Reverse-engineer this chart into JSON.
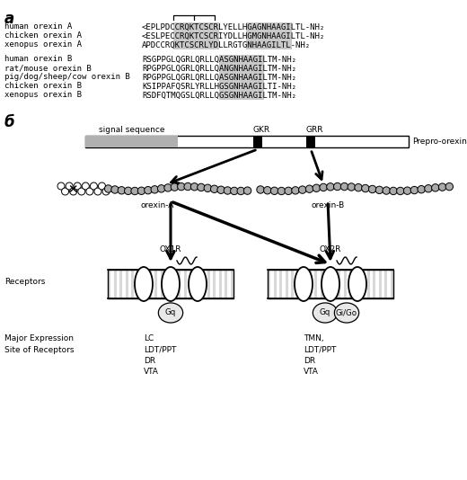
{
  "fig_width": 5.2,
  "fig_height": 5.34,
  "bg_color": "#ffffff",
  "panel_a_label": "a",
  "panel_b_label": "б",
  "orexin_a_sequences": [
    [
      "human orexin A",
      "<EPLPDCCRQKTCSCRLYELLHGAGNHAAGILTL-NH₂"
    ],
    [
      "chicken orexin A",
      "<ESLPECCRQKTCSCRIYDLLHGMGNHAAGILTL-NH₂"
    ],
    [
      "xenopus orexin A",
      "APDCCRQKTCSCRLYDLLRGTGNHAAGILTL-NH₂"
    ]
  ],
  "orexin_b_sequences": [
    [
      "human orexin B",
      "RSGPPGLQGRLQRLLQASGNHAAGILTM-NH₂"
    ],
    [
      "rat/mouse orexin B",
      "RPGPPGLQGRLQRLLQANGNHAAGILTM-NH₂"
    ],
    [
      "pig/dog/sheep/cow orexin B",
      "RPGPPGLQGRLQRLLQASGNHAAGILTM-NH₂"
    ],
    [
      "chicken orexin B",
      "KSIPPAFQSRLYRLLHGSGNHAAGILTI-NH₂"
    ],
    [
      "xenopus orexin B",
      "RSDFQTMQGSLQRLLQGSGNHAAGILTM-NH₂"
    ]
  ],
  "conserved_color": "#c8c8c8",
  "signal_color": "#b0b0b0"
}
